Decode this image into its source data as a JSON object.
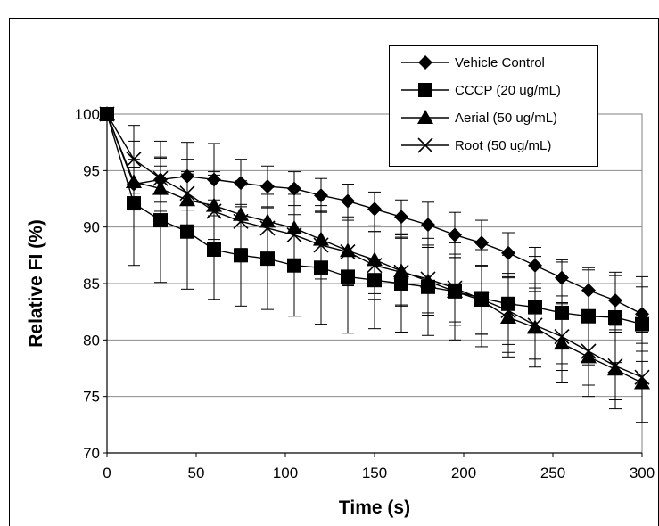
{
  "chart_data": {
    "type": "line",
    "title": "",
    "xlabel": "Time (s)",
    "ylabel": "Relative FI (%)",
    "xlim": [
      0,
      300
    ],
    "ylim": [
      70,
      100
    ],
    "xticks": [
      0,
      50,
      100,
      150,
      200,
      250,
      300
    ],
    "yticks": [
      70,
      75,
      80,
      85,
      90,
      95,
      100
    ],
    "grid": "horizontal",
    "legend": "top-right",
    "x": [
      0,
      15,
      30,
      45,
      60,
      75,
      90,
      105,
      120,
      135,
      150,
      165,
      180,
      195,
      210,
      225,
      240,
      255,
      270,
      285,
      300
    ],
    "series": [
      {
        "name": "Vehicle Control",
        "marker": "diamond",
        "values": [
          100,
          93.8,
          94.2,
          94.5,
          94.2,
          93.9,
          93.6,
          93.4,
          92.8,
          92.3,
          91.6,
          90.9,
          90.2,
          89.3,
          88.6,
          87.7,
          86.6,
          85.5,
          84.4,
          83.5,
          82.3
        ],
        "errors": [
          0.5,
          1.5,
          2.0,
          3.0,
          3.2,
          2.1,
          1.8,
          1.5,
          1.5,
          1.5,
          1.5,
          1.5,
          2.0,
          2.0,
          2.0,
          1.8,
          1.6,
          1.6,
          1.8,
          2.2,
          3.3
        ]
      },
      {
        "name": "CCCP (20 ug/mL)",
        "marker": "square",
        "values": [
          100,
          92.1,
          90.6,
          89.6,
          88.0,
          87.5,
          87.2,
          86.6,
          86.4,
          85.6,
          85.3,
          85.0,
          84.7,
          84.3,
          83.7,
          83.2,
          82.9,
          82.4,
          82.1,
          82.0,
          81.4
        ],
        "errors": [
          0.5,
          5.5,
          5.5,
          5.1,
          4.4,
          4.5,
          4.5,
          4.5,
          5.0,
          5.0,
          4.3,
          4.3,
          4.3,
          4.3,
          4.3,
          4.3,
          4.5,
          4.5,
          4.3,
          4.0,
          3.3
        ]
      },
      {
        "name": "Aerial (50 ug/mL)",
        "marker": "triangle",
        "values": [
          100,
          94.0,
          93.4,
          92.4,
          91.9,
          91.1,
          90.5,
          89.9,
          88.9,
          87.9,
          87.1,
          86.1,
          85.2,
          84.3,
          83.5,
          82.0,
          81.1,
          79.7,
          78.5,
          77.4,
          76.2
        ],
        "errors": [
          0.5,
          2.0,
          2.0,
          2.5,
          3.0,
          3.0,
          3.0,
          3.0,
          3.0,
          3.0,
          3.0,
          3.0,
          3.0,
          3.0,
          3.0,
          3.5,
          3.5,
          3.5,
          3.5,
          3.5,
          3.5
        ]
      },
      {
        "name": "Root (50 ug/mL)",
        "marker": "x",
        "values": [
          100,
          96.0,
          94.3,
          93.0,
          91.4,
          90.5,
          89.9,
          89.3,
          88.4,
          87.8,
          86.6,
          86.0,
          85.4,
          84.6,
          83.6,
          82.6,
          81.3,
          80.3,
          79.0,
          77.7,
          76.7
        ],
        "errors": [
          0.5,
          3.0,
          3.3,
          3.0,
          3.2,
          3.2,
          3.0,
          3.0,
          3.0,
          3.0,
          3.0,
          3.0,
          3.0,
          3.0,
          3.0,
          3.0,
          3.0,
          3.0,
          3.0,
          3.0,
          4.0
        ]
      }
    ]
  }
}
